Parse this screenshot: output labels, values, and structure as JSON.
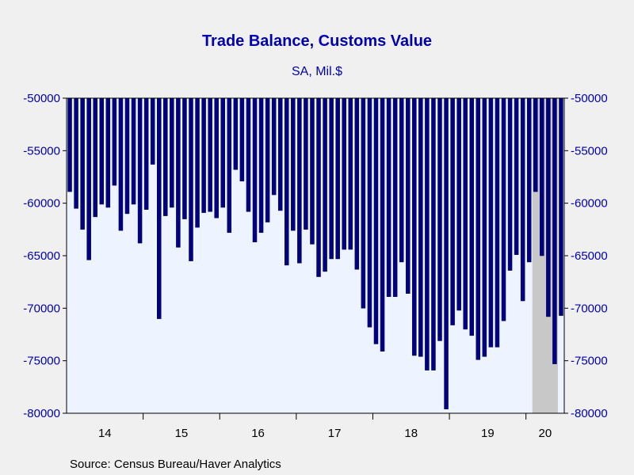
{
  "chart_data": {
    "type": "bar",
    "title": "Trade Balance, Customs Value",
    "subtitle": "SA, Mil.$",
    "source": "Source:  Census Bureau/Haver Analytics",
    "xlabel": "",
    "ylabel": "",
    "ylim": [
      -80000,
      -50000
    ],
    "yticks": [
      "-50000",
      "-55000",
      "-60000",
      "-65000",
      "-70000",
      "-75000",
      "-80000"
    ],
    "ytick_values": [
      -50000,
      -55000,
      -60000,
      -65000,
      -70000,
      -75000,
      -80000
    ],
    "xtick_labels": [
      "14",
      "15",
      "16",
      "17",
      "18",
      "19",
      "20"
    ],
    "x_start": "2014-01",
    "grid": false,
    "shaded_period": [
      "2020-02",
      "2020-05"
    ],
    "colors": {
      "bar": "#000080",
      "bar_edge": "#00004a",
      "plot_bg": "#eef4ff",
      "shade": "#c8c8c8",
      "text_blue": "#0000b0",
      "page_bg": "#f0f0f0"
    },
    "values": [
      -58900,
      -60500,
      -62500,
      -65400,
      -61300,
      -60100,
      -60400,
      -58300,
      -62600,
      -61000,
      -60100,
      -63800,
      -60600,
      -56300,
      -71000,
      -61200,
      -60400,
      -64200,
      -61500,
      -65500,
      -62300,
      -60900,
      -60800,
      -61400,
      -60400,
      -62800,
      -56800,
      -57900,
      -60800,
      -63700,
      -62800,
      -61800,
      -59200,
      -60700,
      -65900,
      -62600,
      -65700,
      -62500,
      -63900,
      -67000,
      -66500,
      -65300,
      -65300,
      -64400,
      -64400,
      -66300,
      -70000,
      -71800,
      -73400,
      -74100,
      -68900,
      -68900,
      -65600,
      -68600,
      -74500,
      -74600,
      -75900,
      -75900,
      -73100,
      -79600,
      -71600,
      -70200,
      -72000,
      -72600,
      -74900,
      -74600,
      -73700,
      -73700,
      -71200,
      -66400,
      -64900,
      -69300,
      -65600,
      -58900,
      -65000,
      -70800,
      -75300,
      -70700
    ]
  }
}
